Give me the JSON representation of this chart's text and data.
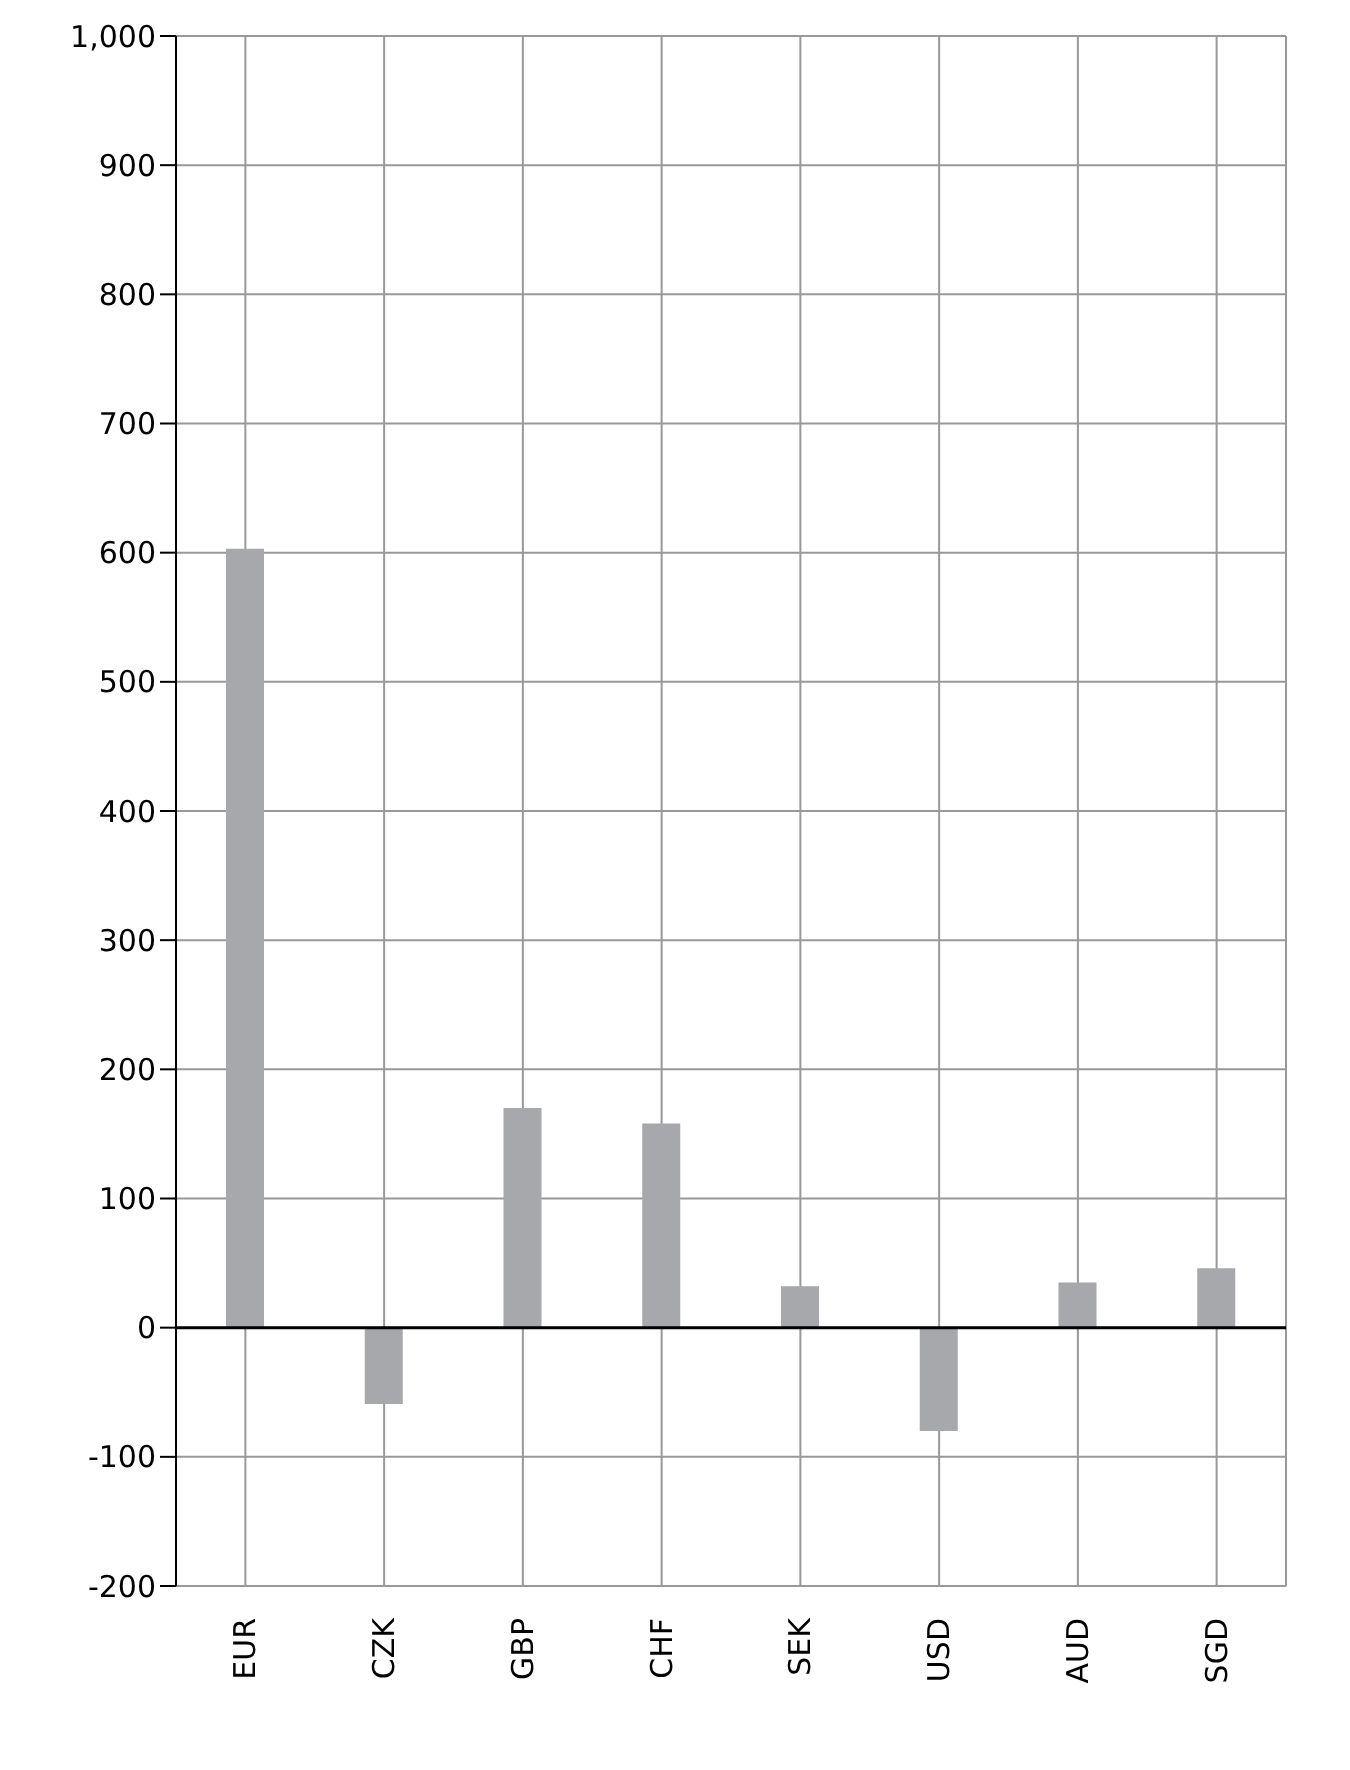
{
  "chart_data": {
    "type": "bar",
    "categories": [
      "EUR",
      "CZK",
      "GBP",
      "CHF",
      "SEK",
      "USD",
      "AUD",
      "SGD"
    ],
    "values": [
      603,
      -59,
      170,
      158,
      32,
      -80,
      35,
      46
    ],
    "color": "#a7a8ab",
    "ylim": [
      -200,
      1000
    ],
    "yticks": [
      -200,
      -100,
      0,
      100,
      200,
      300,
      400,
      500,
      600,
      700,
      800,
      900,
      {
        "value": 1000,
        "label": "1,000"
      }
    ],
    "ref_lines": [
      {
        "axis": "y",
        "value": 0,
        "color": "#000000"
      }
    ],
    "grid": true
  }
}
